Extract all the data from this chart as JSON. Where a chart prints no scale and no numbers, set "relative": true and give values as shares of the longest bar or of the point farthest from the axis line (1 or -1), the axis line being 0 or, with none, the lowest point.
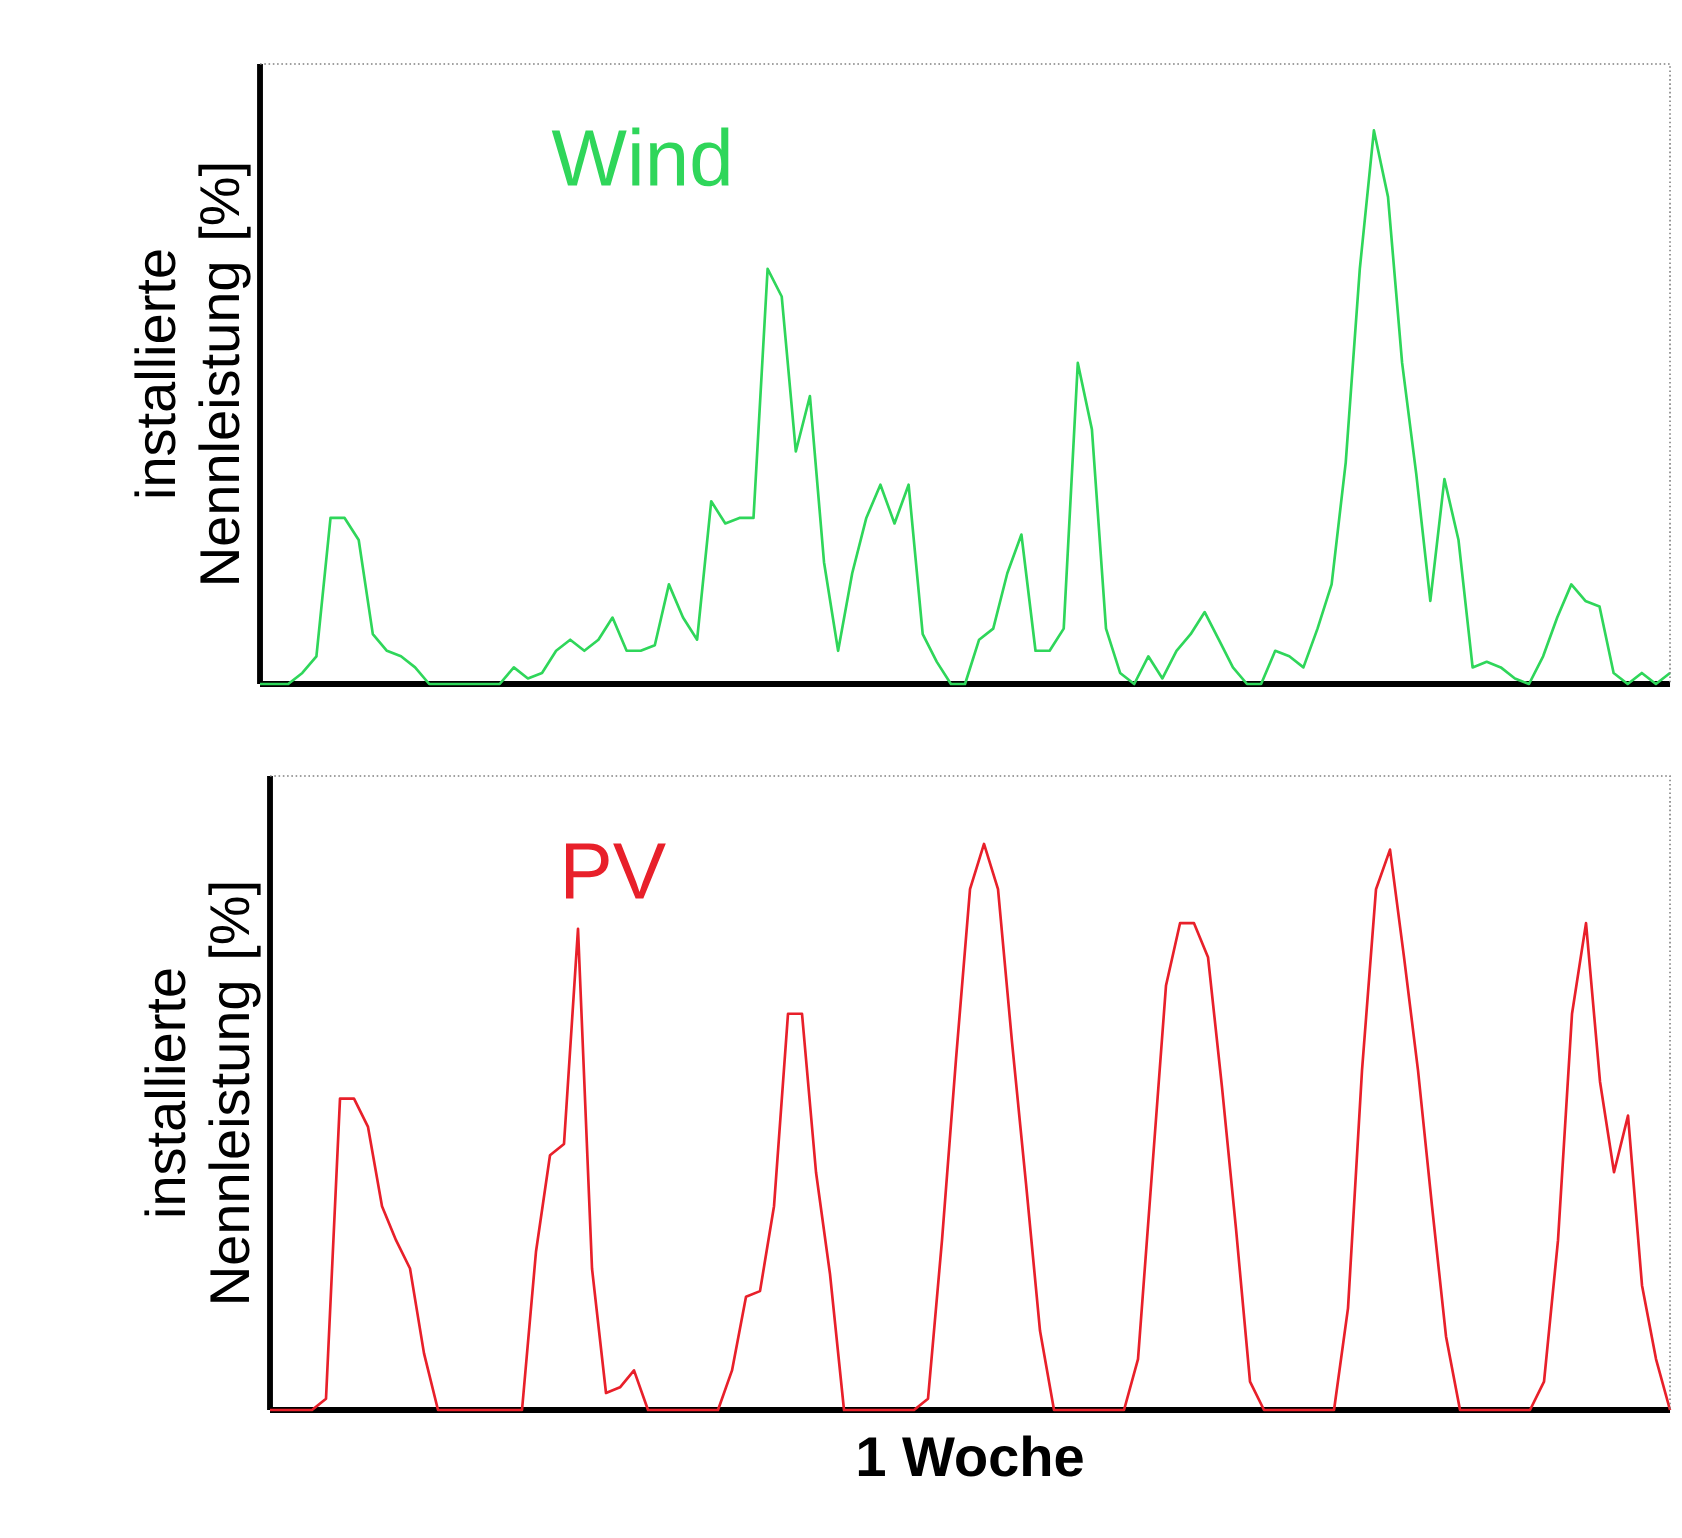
{
  "chart_data": [
    {
      "type": "line",
      "relative": true,
      "ylabel": "installierte Nennleistung [%]",
      "categories": [
        null,
        null,
        null,
        null,
        null,
        null,
        null,
        null,
        null,
        null,
        null,
        null,
        null,
        null,
        null,
        null,
        null,
        null,
        null,
        null,
        null,
        null,
        null,
        null,
        null,
        null,
        null,
        null,
        null,
        null,
        null,
        null,
        null,
        null,
        null,
        null,
        null,
        null,
        null,
        null,
        null,
        null,
        null,
        null,
        null,
        null,
        null,
        null,
        null,
        null,
        null,
        null,
        null,
        null,
        null,
        null,
        null,
        null,
        null,
        null,
        null,
        null,
        null,
        null,
        null,
        null,
        null,
        null,
        null,
        null,
        null,
        null,
        null,
        null,
        null,
        null,
        null,
        null,
        null,
        null,
        null,
        null,
        null,
        null,
        null,
        null,
        null,
        null,
        null,
        null,
        null,
        null,
        null,
        null,
        null,
        null,
        null,
        null,
        null,
        null,
        null
      ],
      "series": [
        {
          "name": "Wind",
          "color": "#2fd65a",
          "values": [
            0,
            0,
            0,
            0.02,
            0.05,
            0.3,
            0.3,
            0.26,
            0.09,
            0.06,
            0.05,
            0.03,
            0,
            0,
            0,
            0,
            0,
            0,
            0.03,
            0.01,
            0.02,
            0.06,
            0.08,
            0.06,
            0.08,
            0.12,
            0.06,
            0.06,
            0.07,
            0.18,
            0.12,
            0.08,
            0.33,
            0.29,
            0.3,
            0.3,
            0.75,
            0.7,
            0.42,
            0.52,
            0.22,
            0.06,
            0.2,
            0.3,
            0.36,
            0.29,
            0.36,
            0.09,
            0.04,
            0,
            0,
            0.08,
            0.1,
            0.2,
            0.27,
            0.06,
            0.06,
            0.1,
            0.58,
            0.46,
            0.1,
            0.02,
            0,
            0.05,
            0.01,
            0.06,
            0.09,
            0.13,
            0.08,
            0.03,
            0,
            0,
            0.06,
            0.05,
            0.03,
            0.1,
            0.18,
            0.4,
            0.75,
            1,
            0.88,
            0.58,
            0.38,
            0.15,
            0.37,
            0.26,
            0.03,
            0.04,
            0.03,
            0.01,
            0,
            0.05,
            0.12,
            0.18,
            0.15,
            0.14,
            0.02,
            0,
            0.02,
            0,
            0.02
          ]
        }
      ]
    },
    {
      "type": "line",
      "relative": true,
      "ylabel": "installierte Nennleistung [%]",
      "xlabel": "1 Woche",
      "categories": [
        null,
        null,
        null,
        null,
        null,
        null,
        null,
        null,
        null,
        null,
        null,
        null,
        null,
        null,
        null,
        null,
        null,
        null,
        null,
        null,
        null,
        null,
        null,
        null,
        null,
        null,
        null,
        null,
        null,
        null,
        null,
        null,
        null,
        null,
        null,
        null,
        null,
        null,
        null,
        null,
        null,
        null,
        null,
        null,
        null,
        null,
        null,
        null,
        null,
        null,
        null,
        null,
        null,
        null,
        null,
        null,
        null,
        null,
        null,
        null,
        null,
        null,
        null,
        null,
        null,
        null,
        null,
        null,
        null,
        null,
        null,
        null,
        null,
        null,
        null,
        null,
        null,
        null,
        null,
        null,
        null,
        null,
        null,
        null,
        null,
        null,
        null,
        null,
        null,
        null,
        null,
        null,
        null,
        null,
        null,
        null,
        null,
        null,
        null,
        null,
        null
      ],
      "series": [
        {
          "name": "PV",
          "color": "#e8202a",
          "values": [
            0,
            0,
            0,
            0,
            0.02,
            0.55,
            0.55,
            0.5,
            0.36,
            0.3,
            0.25,
            0.1,
            0,
            0,
            0,
            0,
            0,
            0,
            0,
            0.28,
            0.45,
            0.47,
            0.85,
            0.25,
            0.03,
            0.04,
            0.07,
            0,
            0,
            0,
            0,
            0,
            0,
            0.07,
            0.2,
            0.21,
            0.36,
            0.7,
            0.7,
            0.42,
            0.24,
            0,
            0,
            0,
            0,
            0,
            0,
            0.02,
            0.3,
            0.62,
            0.92,
            1,
            0.92,
            0.65,
            0.4,
            0.14,
            0,
            0,
            0,
            0,
            0,
            0,
            0.09,
            0.42,
            0.75,
            0.86,
            0.86,
            0.8,
            0.57,
            0.32,
            0.05,
            0,
            0,
            0,
            0,
            0,
            0,
            0.18,
            0.6,
            0.92,
            0.99,
            0.8,
            0.6,
            0.36,
            0.13,
            0,
            0,
            0,
            0,
            0,
            0,
            0.05,
            0.3,
            0.7,
            0.86,
            0.58,
            0.42,
            0.52,
            0.22,
            0.09,
            0
          ]
        }
      ]
    }
  ]
}
